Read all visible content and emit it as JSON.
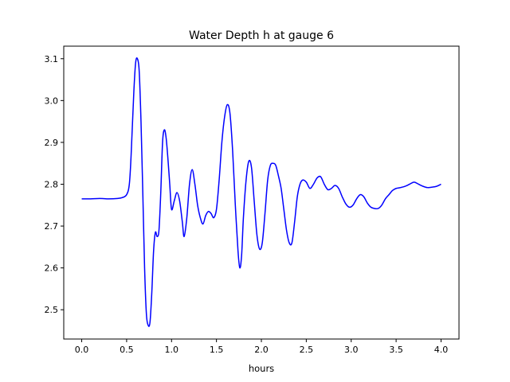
{
  "chart_data": {
    "type": "line",
    "title": "Water Depth h at gauge 6",
    "xlabel": "hours",
    "ylabel": "",
    "xlim": [
      -0.2,
      4.2
    ],
    "ylim": [
      2.43,
      3.13
    ],
    "xticks": [
      0.0,
      0.5,
      1.0,
      1.5,
      2.0,
      2.5,
      3.0,
      3.5,
      4.0
    ],
    "xtick_labels": [
      "0.0",
      "0.5",
      "1.0",
      "1.5",
      "2.0",
      "2.5",
      "3.0",
      "3.5",
      "4.0"
    ],
    "yticks": [
      2.5,
      2.6,
      2.7,
      2.8,
      2.9,
      3.0,
      3.1
    ],
    "ytick_labels": [
      "2.5",
      "2.6",
      "2.7",
      "2.8",
      "2.9",
      "3.0",
      "3.1"
    ],
    "grid": false,
    "legend": false,
    "series": [
      {
        "color": "#0000ff",
        "x": [
          0.0,
          0.1,
          0.2,
          0.3,
          0.4,
          0.45,
          0.5,
          0.53,
          0.55,
          0.58,
          0.6,
          0.62,
          0.64,
          0.66,
          0.68,
          0.7,
          0.72,
          0.74,
          0.76,
          0.78,
          0.8,
          0.82,
          0.84,
          0.86,
          0.88,
          0.9,
          0.92,
          0.94,
          0.96,
          0.98,
          1.0,
          1.03,
          1.06,
          1.09,
          1.12,
          1.14,
          1.17,
          1.2,
          1.23,
          1.26,
          1.29,
          1.32,
          1.35,
          1.38,
          1.41,
          1.44,
          1.47,
          1.5,
          1.53,
          1.56,
          1.59,
          1.62,
          1.65,
          1.68,
          1.71,
          1.74,
          1.76,
          1.78,
          1.8,
          1.83,
          1.86,
          1.89,
          1.92,
          1.95,
          1.98,
          2.01,
          2.04,
          2.07,
          2.1,
          2.13,
          2.16,
          2.19,
          2.22,
          2.25,
          2.28,
          2.31,
          2.34,
          2.37,
          2.4,
          2.43,
          2.46,
          2.5,
          2.54,
          2.58,
          2.62,
          2.66,
          2.7,
          2.74,
          2.78,
          2.82,
          2.86,
          2.9,
          2.94,
          2.98,
          3.02,
          3.06,
          3.1,
          3.14,
          3.18,
          3.22,
          3.26,
          3.3,
          3.34,
          3.38,
          3.42,
          3.46,
          3.5,
          3.55,
          3.6,
          3.65,
          3.7,
          3.75,
          3.8,
          3.85,
          3.9,
          3.95,
          4.0
        ],
        "values": [
          2.765,
          2.765,
          2.766,
          2.765,
          2.766,
          2.768,
          2.775,
          2.8,
          2.87,
          3.02,
          3.09,
          3.1,
          3.07,
          2.95,
          2.78,
          2.6,
          2.49,
          2.463,
          2.47,
          2.54,
          2.64,
          2.685,
          2.675,
          2.69,
          2.78,
          2.9,
          2.93,
          2.91,
          2.86,
          2.8,
          2.74,
          2.76,
          2.78,
          2.76,
          2.71,
          2.675,
          2.72,
          2.8,
          2.835,
          2.8,
          2.75,
          2.72,
          2.705,
          2.725,
          2.735,
          2.73,
          2.72,
          2.74,
          2.81,
          2.9,
          2.96,
          2.99,
          2.97,
          2.88,
          2.75,
          2.64,
          2.6,
          2.63,
          2.72,
          2.81,
          2.855,
          2.84,
          2.76,
          2.68,
          2.645,
          2.66,
          2.73,
          2.81,
          2.845,
          2.85,
          2.845,
          2.82,
          2.79,
          2.74,
          2.69,
          2.66,
          2.66,
          2.71,
          2.77,
          2.8,
          2.81,
          2.805,
          2.79,
          2.8,
          2.815,
          2.818,
          2.8,
          2.787,
          2.79,
          2.797,
          2.79,
          2.77,
          2.753,
          2.745,
          2.75,
          2.765,
          2.775,
          2.77,
          2.755,
          2.745,
          2.742,
          2.742,
          2.75,
          2.765,
          2.775,
          2.785,
          2.79,
          2.792,
          2.795,
          2.8,
          2.805,
          2.8,
          2.795,
          2.792,
          2.793,
          2.795,
          2.8
        ]
      }
    ]
  }
}
